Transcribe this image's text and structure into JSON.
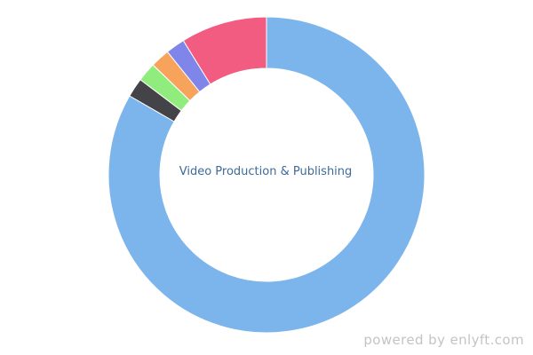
{
  "chart_data": {
    "type": "pie",
    "variant": "donut",
    "center_label": "Video Production & Publishing",
    "slices": [
      {
        "value": 85.0,
        "color": "#7cb5ec"
      },
      {
        "value": 2.0,
        "color": "#434348"
      },
      {
        "value": 2.0,
        "color": "#90ed7d"
      },
      {
        "value": 2.0,
        "color": "#f7a35c"
      },
      {
        "value": 2.0,
        "color": "#8085e9"
      },
      {
        "value": 9.0,
        "color": "#f15c80"
      }
    ],
    "start": "12 o'clock",
    "direction": "clockwise",
    "legend": "none"
  },
  "footer": {
    "watermark": "powered by enlyft.com"
  }
}
